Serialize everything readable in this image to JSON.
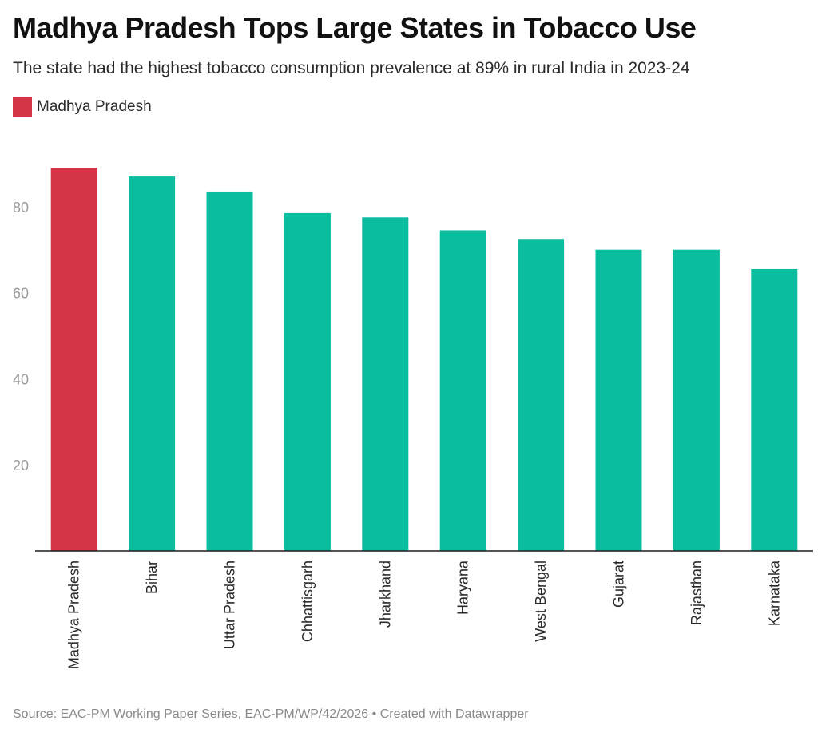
{
  "header": {
    "title": "Madhya Pradesh Tops Large States in Tobacco Use",
    "subtitle": "The state had the highest tobacco consumption prevalence at 89% in rural India in 2023-24"
  },
  "legend": {
    "label": "Madhya Pradesh",
    "color": "#d63447"
  },
  "footer": {
    "source": "Source: EAC-PM Working Paper Series, EAC-PM/WP/42/2026 • Created with Datawrapper"
  },
  "colors": {
    "highlight": "#d63447",
    "default": "#0bbd9f",
    "axis": "#1d1d1d",
    "tick_text": "#9a9a9a"
  },
  "chart_data": {
    "type": "bar",
    "title": "Madhya Pradesh Tops Large States in Tobacco Use",
    "categories": [
      "Madhya Pradesh",
      "Bihar",
      "Uttar Pradesh",
      "Chhattisgarh",
      "Jharkhand",
      "Haryana",
      "West Bengal",
      "Gujarat",
      "Rajasthan",
      "Karnataka"
    ],
    "values": [
      89,
      87,
      83.5,
      78.5,
      77.5,
      74.5,
      72.5,
      70,
      70,
      65.5
    ],
    "highlight_index": 0,
    "yticks": [
      20,
      40,
      60,
      80
    ],
    "ylim": [
      0,
      92
    ],
    "grid": false,
    "legend_position": "top-left",
    "xlabel": "",
    "ylabel": ""
  }
}
